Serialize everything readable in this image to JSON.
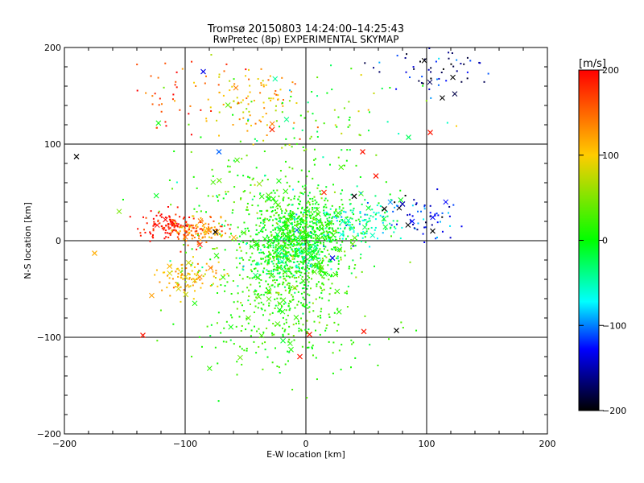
{
  "chart_data": {
    "type": "scatter",
    "title": "Tromsø 20150803 14:24:00–14:25:43",
    "subtitle": "RwPretec (8p) EXPERIMENTAL SKYMAP",
    "xlabel": "E-W location [km]",
    "ylabel": "N-S location [km]",
    "xlim": [
      -200,
      200
    ],
    "ylim": [
      -200,
      200
    ],
    "x_ticks": [
      -200,
      -100,
      0,
      100,
      200
    ],
    "y_ticks": [
      -200,
      -100,
      0,
      100,
      200
    ],
    "grid": true,
    "colorbar": {
      "label": "[m/s]",
      "range": [
        -200,
        200
      ],
      "ticks": [
        200,
        100,
        0,
        -100,
        -200
      ],
      "colors": [
        "#ff0000",
        "#ffcc00",
        "#00ff00",
        "#00ffff",
        "#0000ff",
        "#000000"
      ]
    },
    "clusters": [
      {
        "name": "central",
        "center": [
          -5,
          5
        ],
        "spread": [
          20,
          18
        ],
        "velocity": 5,
        "vel_spread": 18,
        "count": 700
      },
      {
        "name": "central-south",
        "center": [
          -15,
          -40
        ],
        "spread": [
          22,
          22
        ],
        "velocity": 15,
        "vel_spread": 20,
        "count": 320
      },
      {
        "name": "wide-green",
        "center": [
          -25,
          15
        ],
        "spread": [
          40,
          45
        ],
        "velocity": 20,
        "vel_spread": 25,
        "count": 420
      },
      {
        "name": "southern-sparse",
        "center": [
          -20,
          -100
        ],
        "spread": [
          35,
          25
        ],
        "velocity": 15,
        "vel_spread": 15,
        "count": 150
      },
      {
        "name": "western-red",
        "center": [
          -112,
          15
        ],
        "spread": [
          12,
          8
        ],
        "velocity": 190,
        "vel_spread": 15,
        "count": 120
      },
      {
        "name": "western-orange",
        "center": [
          -88,
          10
        ],
        "spread": [
          12,
          7
        ],
        "velocity": 135,
        "vel_spread": 25,
        "count": 110
      },
      {
        "name": "southwest-yellow",
        "center": [
          -95,
          -38
        ],
        "spread": [
          14,
          9
        ],
        "velocity": 110,
        "vel_spread": 20,
        "count": 100
      },
      {
        "name": "north-yellow",
        "center": [
          -50,
          145
        ],
        "spread": [
          22,
          18
        ],
        "velocity": 105,
        "vel_spread": 35,
        "count": 100
      },
      {
        "name": "northwest-red",
        "center": [
          -110,
          150
        ],
        "spread": [
          18,
          20
        ],
        "velocity": 170,
        "vel_spread": 25,
        "count": 35
      },
      {
        "name": "northeast-blue",
        "center": [
          105,
          180
        ],
        "spread": [
          20,
          15
        ],
        "velocity": -150,
        "vel_spread": 45,
        "count": 60
      },
      {
        "name": "east-blue",
        "center": [
          98,
          25
        ],
        "spread": [
          14,
          10
        ],
        "velocity": -125,
        "vel_spread": 40,
        "count": 55
      },
      {
        "name": "east-cyan",
        "center": [
          45,
          22
        ],
        "spread": [
          22,
          12
        ],
        "velocity": -40,
        "vel_spread": 25,
        "count": 140
      },
      {
        "name": "center-cyan",
        "center": [
          -15,
          -18
        ],
        "spread": [
          18,
          10
        ],
        "velocity": -30,
        "vel_spread": 20,
        "count": 110
      },
      {
        "name": "north-scatter",
        "center": [
          10,
          130
        ],
        "spread": [
          40,
          30
        ],
        "velocity": 30,
        "vel_spread": 50,
        "count": 70
      }
    ],
    "crosses": [
      {
        "x": -190,
        "y": 87,
        "v": -200
      },
      {
        "x": -85,
        "y": 175,
        "v": -120
      },
      {
        "x": -72,
        "y": 92,
        "v": -90
      },
      {
        "x": -28,
        "y": 115,
        "v": 180
      },
      {
        "x": 47,
        "y": 92,
        "v": 190
      },
      {
        "x": 58,
        "y": 67,
        "v": 190
      },
      {
        "x": 103,
        "y": 112,
        "v": 190
      },
      {
        "x": 85,
        "y": 107,
        "v": -20
      },
      {
        "x": 40,
        "y": 46,
        "v": -200
      },
      {
        "x": 65,
        "y": 33,
        "v": -200
      },
      {
        "x": 80,
        "y": 38,
        "v": -140
      },
      {
        "x": 88,
        "y": 20,
        "v": -110
      },
      {
        "x": 105,
        "y": 10,
        "v": -200
      },
      {
        "x": -75,
        "y": 9,
        "v": -200
      },
      {
        "x": -175,
        "y": -13,
        "v": 115
      },
      {
        "x": -135,
        "y": -98,
        "v": 190
      },
      {
        "x": 3,
        "y": -97,
        "v": 190
      },
      {
        "x": 48,
        "y": -94,
        "v": 190
      },
      {
        "x": 75,
        "y": -93,
        "v": -200
      },
      {
        "x": -5,
        "y": -120,
        "v": 190
      },
      {
        "x": 15,
        "y": 50,
        "v": 180
      },
      {
        "x": 22,
        "y": -18,
        "v": -120
      }
    ]
  }
}
